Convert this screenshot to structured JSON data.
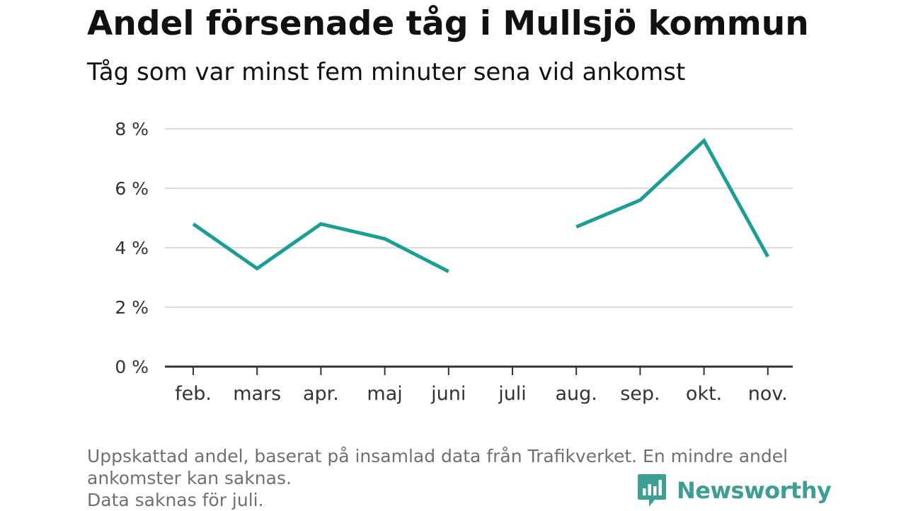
{
  "title": "Andel försenade tåg i Mullsjö kommun",
  "subtitle": "Tåg som var minst fem minuter sena vid ankomst",
  "footer": {
    "line1": "Uppskattad andel, baserat på insamlad data från Trafikverket. En mindre andel",
    "line2": "ankomster kan saknas.",
    "line3": "Data saknas för juli."
  },
  "brand": {
    "name": "Newsworthy",
    "icon": "newsworthy-logo-icon"
  },
  "colors": {
    "line": "#1a9e96",
    "grid": "#dcdcdc",
    "axis": "#333333",
    "brand": "#3d9e93"
  },
  "chart_data": {
    "type": "line",
    "categories": [
      "feb.",
      "mars",
      "apr.",
      "maj",
      "juni",
      "juli",
      "aug.",
      "sep.",
      "okt.",
      "nov."
    ],
    "series": [
      {
        "values": [
          4.8,
          3.3,
          4.8,
          4.3,
          3.2,
          null,
          4.7,
          5.6,
          7.6,
          3.7
        ]
      }
    ],
    "y_ticks": [
      0,
      2,
      4,
      6,
      8
    ],
    "y_tick_labels": [
      "0 %",
      "2 %",
      "4 %",
      "6 %",
      "8 %"
    ],
    "ylim": [
      0,
      8
    ],
    "grid": true,
    "legend": "none"
  }
}
